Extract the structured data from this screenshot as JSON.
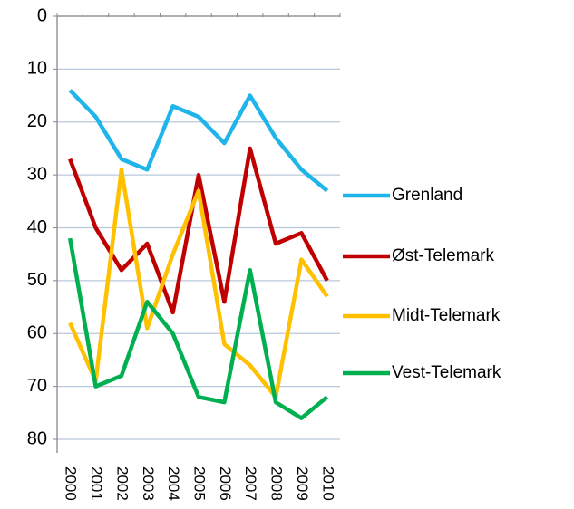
{
  "chart_data": {
    "type": "line",
    "categories": [
      "2000",
      "2001",
      "2002",
      "2003",
      "2004",
      "2005",
      "2006",
      "2007",
      "2008",
      "2009",
      "2010"
    ],
    "series": [
      {
        "name": "Grenland",
        "color": "#1fb4ea",
        "values": [
          14,
          19,
          27,
          29,
          17,
          19,
          24,
          15,
          23,
          29,
          33
        ]
      },
      {
        "name": "Øst-Telemark",
        "color": "#c00000",
        "values": [
          27,
          40,
          48,
          43,
          56,
          30,
          54,
          25,
          43,
          41,
          50
        ]
      },
      {
        "name": "Midt-Telemark",
        "color": "#ffc000",
        "values": [
          58,
          69,
          29,
          59,
          45,
          33,
          62,
          66,
          72,
          46,
          53
        ]
      },
      {
        "name": "Vest-Telemark",
        "color": "#00b050",
        "values": [
          42,
          70,
          68,
          54,
          60,
          72,
          73,
          48,
          73,
          76,
          72
        ]
      }
    ],
    "ylim": [
      0,
      80
    ],
    "yticks": [
      0,
      10,
      20,
      30,
      40,
      50,
      60,
      70,
      80
    ],
    "y_inverted": true,
    "grid": true,
    "legend": "right"
  }
}
